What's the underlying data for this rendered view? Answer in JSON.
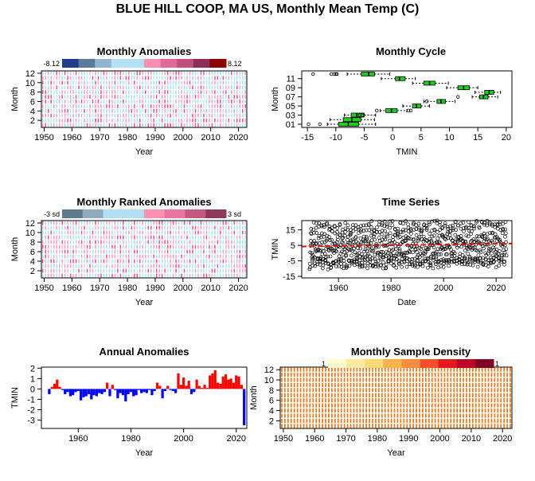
{
  "title": "BLUE HILL COOP, MA US, Monthly Mean Temp (C)",
  "chart_data": [
    {
      "id": "monthly-anomalies",
      "type": "heatmap",
      "title": "Monthly Anomalies",
      "xlabel": "Year",
      "ylabel": "Month",
      "x_ticks": [
        1950,
        1960,
        1970,
        1980,
        1990,
        2000,
        2010,
        2020
      ],
      "y_ticks": [
        2,
        4,
        6,
        8,
        10,
        12
      ],
      "xlim": [
        1949,
        2023
      ],
      "ylim": [
        0.5,
        12.5
      ],
      "legend_min_label": "-8.12",
      "legend_max_label": "8.12",
      "color_scale": [
        "#1f3c88",
        "#5b7a9a",
        "#8fb3d0",
        "#b3dff4",
        "#b3dff4",
        "#ff8fb1",
        "#e06a96",
        "#c0507a",
        "#8e2d58",
        "#8b0000"
      ]
    },
    {
      "id": "monthly-cycle",
      "type": "boxplot",
      "title": "Monthly Cycle",
      "xlabel": "TMIN",
      "ylabel": "Month",
      "x_ticks": [
        -15,
        -10,
        -5,
        0,
        5,
        10,
        15,
        20
      ],
      "y_ticks": [
        "01",
        "03",
        "05",
        "07",
        "09",
        "11"
      ],
      "xlim": [
        -16,
        21
      ],
      "box_color": "#22cc22",
      "boxes": [
        {
          "month": 1,
          "whisker_low": -11.5,
          "q1": -9.5,
          "median": -7.8,
          "q3": -6.0,
          "whisker_high": -3.0,
          "outliers": [
            -14.8,
            -12.8
          ]
        },
        {
          "month": 2,
          "whisker_low": -11.0,
          "q1": -8.7,
          "median": -7.2,
          "q3": -5.6,
          "whisker_high": -3.2,
          "outliers": []
        },
        {
          "month": 3,
          "whisker_low": -8.5,
          "q1": -7.3,
          "median": -6.3,
          "q3": -5.0,
          "whisker_high": -3.0,
          "outliers": [
            -5.8,
            -5.3
          ]
        },
        {
          "month": 4,
          "whisker_low": -2.2,
          "q1": -1.2,
          "median": -0.2,
          "q3": 0.8,
          "whisker_high": 2.5,
          "outliers": [
            -2.8,
            2.8,
            3.2
          ]
        },
        {
          "month": 5,
          "whisker_low": 1.8,
          "q1": 3.5,
          "median": 4.2,
          "q3": 5.0,
          "whisker_high": 6.5,
          "outliers": []
        },
        {
          "month": 6,
          "whisker_low": 5.5,
          "q1": 7.8,
          "median": 8.5,
          "q3": 9.3,
          "whisker_high": 11.0,
          "outliers": [
            6.0
          ]
        },
        {
          "month": 7,
          "whisker_low": 14.0,
          "q1": 15.3,
          "median": 16.0,
          "q3": 16.8,
          "whisker_high": 18.5,
          "outliers": [
            11.5
          ]
        },
        {
          "month": 8,
          "whisker_low": 14.5,
          "q1": 16.2,
          "median": 17.0,
          "q3": 17.8,
          "whisker_high": 19.0,
          "outliers": []
        },
        {
          "month": 9,
          "whisker_low": 9.5,
          "q1": 11.5,
          "median": 12.5,
          "q3": 13.5,
          "whisker_high": 15.0,
          "outliers": []
        },
        {
          "month": 10,
          "whisker_low": 3.5,
          "q1": 5.5,
          "median": 6.5,
          "q3": 7.5,
          "whisker_high": 9.8,
          "outliers": []
        },
        {
          "month": 11,
          "whisker_low": -2.0,
          "q1": 0.5,
          "median": 1.2,
          "q3": 2.2,
          "whisker_high": 4.0,
          "outliers": []
        },
        {
          "month": 12,
          "whisker_low": -8.0,
          "q1": -5.5,
          "median": -4.2,
          "q3": -3.2,
          "whisker_high": -0.5,
          "outliers": [
            -14.0,
            -10.8,
            -10.3,
            -10.0,
            -9.8
          ]
        }
      ]
    },
    {
      "id": "monthly-ranked-anomalies",
      "type": "heatmap",
      "title": "Monthly Ranked Anomalies",
      "xlabel": "Year",
      "ylabel": "Month",
      "x_ticks": [
        1950,
        1960,
        1970,
        1980,
        1990,
        2000,
        2010,
        2020
      ],
      "y_ticks": [
        2,
        4,
        6,
        8,
        10,
        12
      ],
      "xlim": [
        1949,
        2023
      ],
      "ylim": [
        0.5,
        12.5
      ],
      "legend_min_label": "-3 sd",
      "legend_max_label": "3 sd",
      "color_scale": [
        "#5f7a8f",
        "#8fa9bf",
        "#b3dff4",
        "#b3dff4",
        "#ff8fb1",
        "#e8759e",
        "#c25a80",
        "#8c3a5a"
      ]
    },
    {
      "id": "time-series",
      "type": "scatter",
      "title": "Time Series",
      "xlabel": "Date",
      "ylabel": "TMIN",
      "x_ticks": [
        1960,
        1980,
        2000,
        2020
      ],
      "y_ticks": [
        -15,
        -5,
        5,
        15
      ],
      "xlim": [
        1946,
        2026
      ],
      "ylim": [
        -16,
        21
      ],
      "trend_color": "#ff0000",
      "trend": [
        [
          1946,
          4.3
        ],
        [
          2026,
          6.2
        ]
      ],
      "seasonal_mean": [
        -7.6,
        -6.8,
        -6.1,
        -0.1,
        4.2,
        8.5,
        16.0,
        17.0,
        12.5,
        6.5,
        1.3,
        -4.3
      ],
      "seasonal_spread": 3.2
    },
    {
      "id": "annual-anomalies",
      "type": "bar",
      "title": "Annual Anomalies",
      "xlabel": "Year",
      "ylabel": "TMIN",
      "x_ticks": [
        1960,
        1980,
        2000,
        2020
      ],
      "y_ticks": [
        -3,
        -2,
        -1,
        0,
        1,
        2
      ],
      "xlim": [
        1946,
        2024
      ],
      "ylim": [
        -3.8,
        2.1
      ],
      "positive_color": "#ff0000",
      "negative_color": "#0000ff",
      "years": [
        1949,
        1950,
        1951,
        1952,
        1953,
        1954,
        1955,
        1956,
        1957,
        1958,
        1959,
        1960,
        1961,
        1962,
        1963,
        1964,
        1965,
        1966,
        1967,
        1968,
        1969,
        1970,
        1971,
        1972,
        1973,
        1974,
        1975,
        1976,
        1977,
        1978,
        1979,
        1980,
        1981,
        1982,
        1983,
        1984,
        1985,
        1986,
        1987,
        1988,
        1989,
        1990,
        1991,
        1992,
        1993,
        1994,
        1995,
        1996,
        1997,
        1998,
        1999,
        2000,
        2001,
        2002,
        2003,
        2004,
        2005,
        2006,
        2007,
        2008,
        2009,
        2010,
        2011,
        2012,
        2013,
        2014,
        2015,
        2016,
        2017,
        2018,
        2019,
        2020,
        2021,
        2022,
        2023
      ],
      "values": [
        -0.5,
        0.2,
        0.5,
        0.9,
        0.2,
        -0.1,
        -0.5,
        -0.3,
        -0.7,
        -0.6,
        -0.3,
        -0.2,
        -1.1,
        -0.8,
        -0.7,
        -0.5,
        -1.0,
        -0.6,
        -0.7,
        -0.4,
        -0.5,
        -0.3,
        0.6,
        -0.7,
        0.4,
        -0.1,
        -0.9,
        -0.4,
        -0.6,
        -1.2,
        -0.5,
        -0.3,
        -0.7,
        -0.6,
        -0.1,
        -0.4,
        -0.3,
        -0.4,
        -0.1,
        -0.6,
        -0.2,
        0.6,
        0.3,
        -0.9,
        -0.2,
        0.3,
        -0.1,
        -0.2,
        -0.4,
        1.5,
        0.4,
        1.1,
        0.3,
        0.8,
        -0.5,
        -0.3,
        0.9,
        0.3,
        0.1,
        0.4,
        0.1,
        1.3,
        1.5,
        1.8,
        0.6,
        0.5,
        1.2,
        1.4,
        0.9,
        1.0,
        0.6,
        1.3,
        1.2,
        0.4,
        -3.5
      ]
    },
    {
      "id": "monthly-sample-density",
      "type": "heatmap",
      "title": "Monthly Sample Density",
      "xlabel": "Year",
      "ylabel": "Month",
      "x_ticks": [
        1950,
        1960,
        1970,
        1980,
        1990,
        2000,
        2010,
        2020
      ],
      "y_ticks": [
        2,
        4,
        6,
        8,
        10,
        12
      ],
      "xlim": [
        1949,
        2023
      ],
      "ylim": [
        0.5,
        12.5
      ],
      "legend_min_label": "1",
      "legend_max_label": "1",
      "cell_color": "#e8791e",
      "color_scale": [
        "#fffbcc",
        "#fee9a0",
        "#fed976",
        "#feb24c",
        "#fd8d3c",
        "#fc4e2a",
        "#e31a1c",
        "#bd0026",
        "#800026"
      ]
    }
  ]
}
